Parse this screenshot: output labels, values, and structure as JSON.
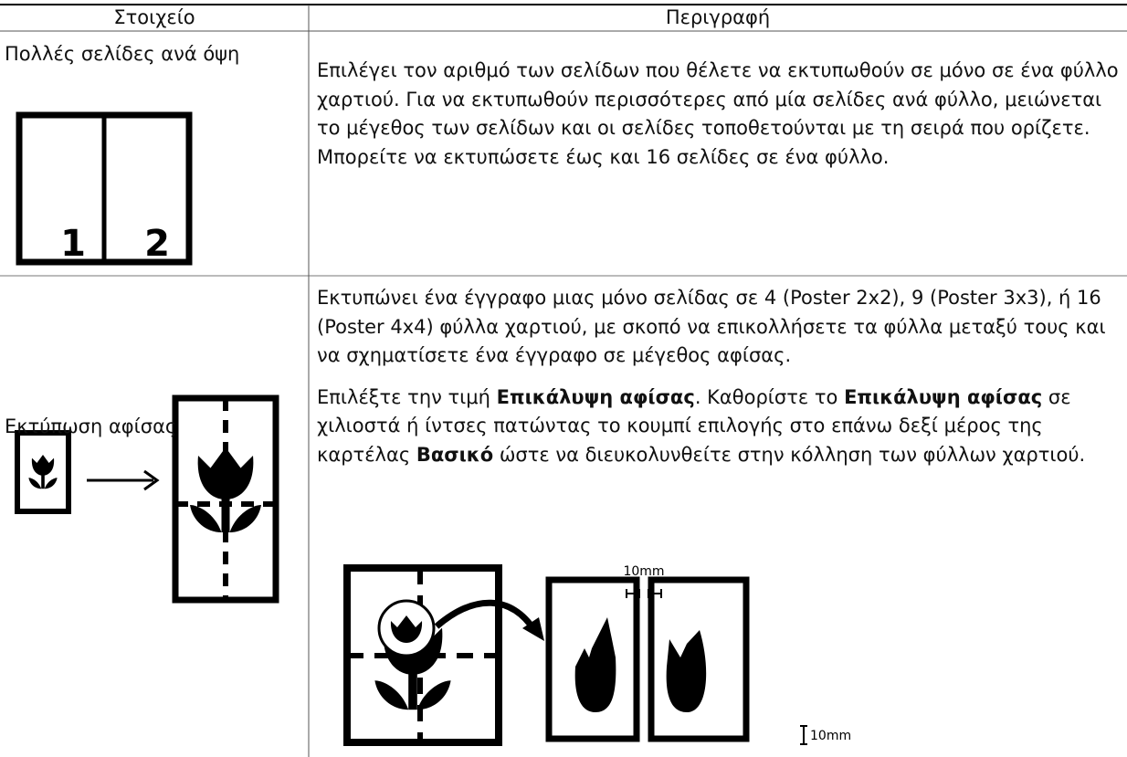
{
  "table": {
    "header": [
      "Στοιχείο",
      "Περιγραφή"
    ],
    "rows": [
      {
        "item": "Πολλές σελίδες ανά όψη",
        "description": [
          [
            {
              "text": "Επιλέγει τον αριθμό των σελίδων που θέλετε να εκτυπωθούν σε μόνο σε ένα φύλλο χαρτιού. Για να εκτυπωθούν περισσότερες από μία σελίδες ανά φύλλο, μειώνεται το μέγεθος των σελίδων και οι σελίδες τοποθετούνται με τη σειρά που ορίζετε. Μπορείτε να εκτυπώσετε έως και 16 σελίδες σε ένα φύλλο.",
              "bold": false
            }
          ]
        ],
        "icon_labels": [
          "1",
          "2"
        ]
      },
      {
        "item": "Εκτύπωση αφίσας",
        "description": [
          [
            {
              "text": "Εκτυπώνει ένα έγγραφο μιας μόνο σελίδας σε 4 (Poster 2x2), 9 (Poster 3x3), ή 16 (Poster 4x4) φύλλα χαρτιού, με σκοπό να επικολλήσετε τα φύλλα μεταξύ τους και να σχηματίσετε ένα έγγραφο σε μέγεθος αφίσας.",
              "bold": false
            }
          ],
          [
            {
              "text": "Επιλέξτε την τιμή ",
              "bold": false
            },
            {
              "text": "Επικάλυψη αφίσας",
              "bold": true
            },
            {
              "text": ". Καθορίστε το ",
              "bold": false
            },
            {
              "text": "Επικάλυψη αφίσας",
              "bold": true
            },
            {
              "text": " σε χιλιοστά ή ίντσες πατώντας το κουμπί επιλογής στο επάνω δεξί μέρος της καρτέλας ",
              "bold": false
            },
            {
              "text": "Βασικό",
              "bold": true
            },
            {
              "text": " ώστε να διευκολυνθείτε στην κόλληση των φύλλων χαρτιού.",
              "bold": false
            }
          ]
        ],
        "diagram_labels": [
          "10mm",
          "10mm"
        ]
      }
    ]
  }
}
